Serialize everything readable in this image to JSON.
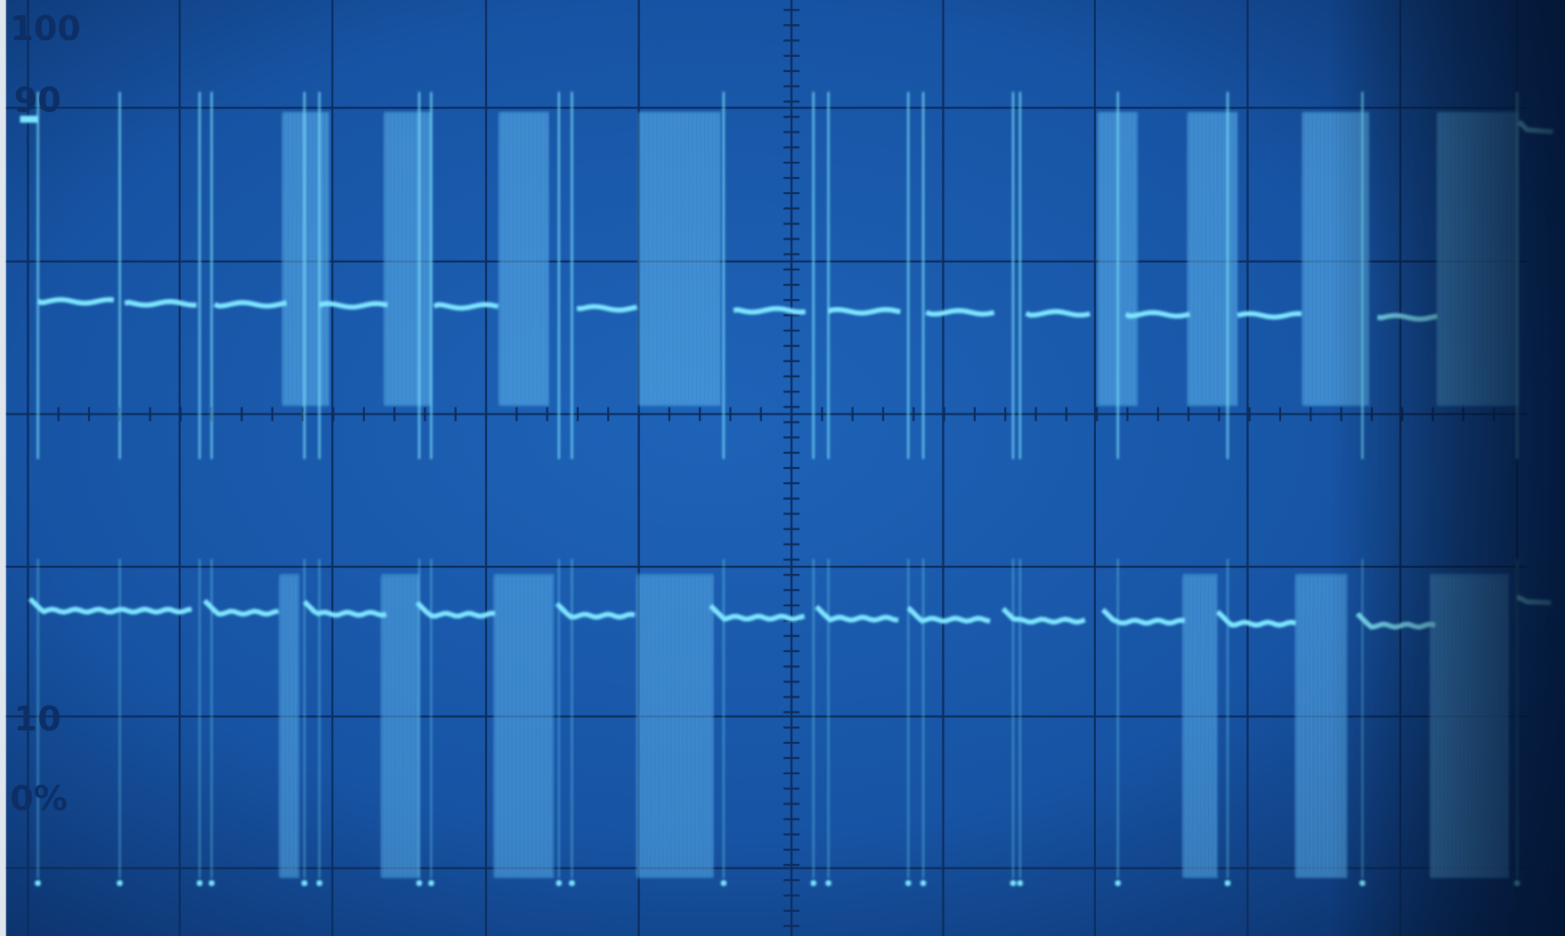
{
  "graticule_labels": [
    "100",
    "90",
    "10",
    "0%"
  ]
}
